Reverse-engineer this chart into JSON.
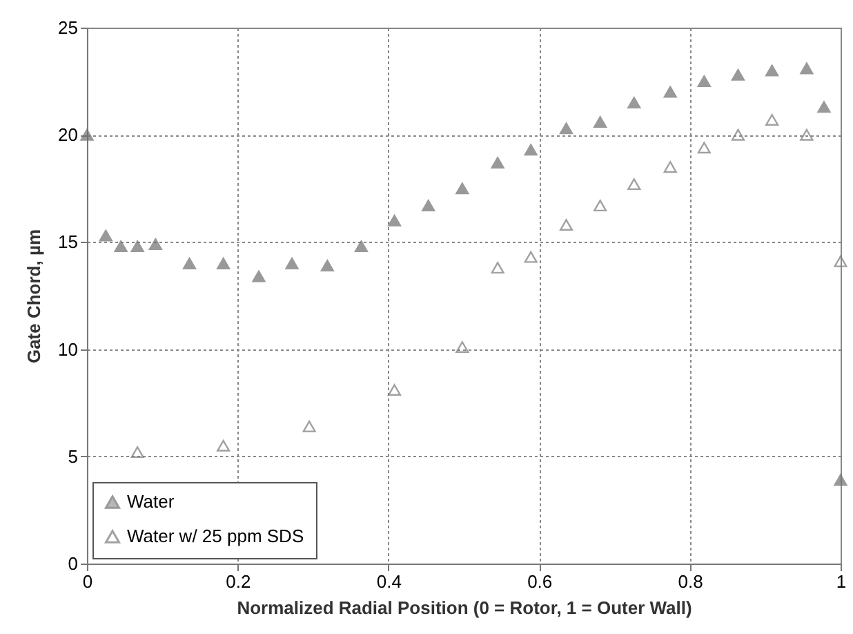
{
  "chart_data": {
    "type": "scatter",
    "xlabel": "Normalized Radial Position (0 = Rotor, 1 = Outer Wall)",
    "ylabel": "Gate Chord, µm",
    "xlim": [
      0,
      1
    ],
    "xticks": [
      0,
      0.2,
      0.4,
      0.6,
      0.8,
      1
    ],
    "ylim": [
      0,
      25
    ],
    "yticks": [
      0,
      5,
      10,
      15,
      20,
      25
    ],
    "grid": true,
    "legend": "bottom left",
    "marker": "triangle",
    "series": [
      {
        "name": "Water",
        "color": "#6e6e6e",
        "x": [
          0,
          0.025,
          0.045,
          0.067,
          0.091,
          0.136,
          0.181,
          0.228,
          0.272,
          0.319,
          0.364,
          0.408,
          0.453,
          0.498,
          0.545,
          0.589,
          0.636,
          0.681,
          0.726,
          0.774,
          0.819,
          0.864,
          0.909,
          0.955,
          0.978,
          1.0
        ],
        "values": [
          20,
          15.3,
          14.8,
          14.8,
          14.9,
          14.0,
          14.0,
          13.4,
          14.0,
          13.9,
          14.8,
          16.0,
          16.7,
          17.5,
          18.7,
          19.3,
          20.3,
          20.6,
          21.5,
          22.0,
          22.5,
          22.8,
          23.0,
          23.1,
          21.3,
          3.9
        ]
      },
      {
        "name": "Water w/ 25 ppm SDS",
        "color": "#7a7a7a",
        "x": [
          0.067,
          0.181,
          0.295,
          0.408,
          0.498,
          0.545,
          0.589,
          0.636,
          0.681,
          0.726,
          0.774,
          0.819,
          0.864,
          0.909,
          0.955,
          1.0
        ],
        "values": [
          5.2,
          5.5,
          6.4,
          8.1,
          10.1,
          13.8,
          14.3,
          15.8,
          16.7,
          17.7,
          18.5,
          19.4,
          20.0,
          20.7,
          20.0,
          14.1
        ]
      }
    ]
  }
}
